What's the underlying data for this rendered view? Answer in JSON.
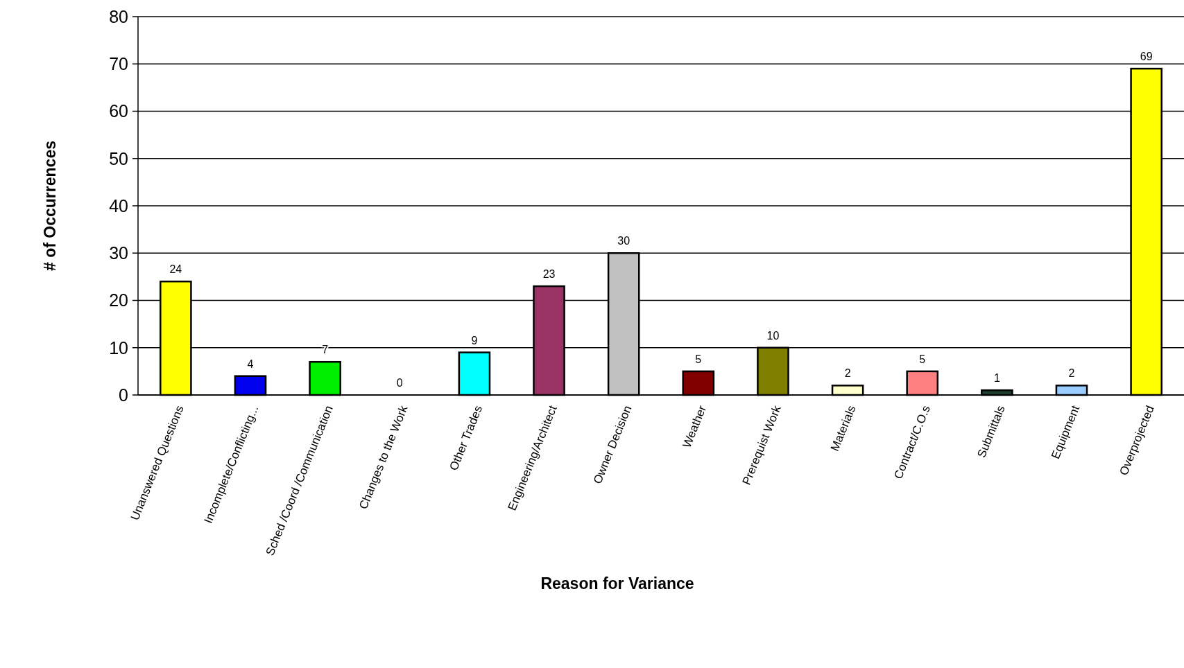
{
  "chart_data": {
    "type": "bar",
    "xlabel": "Reason for Variance",
    "ylabel": "# of Occurrences",
    "categories": [
      "Unanswered Questions",
      "Incomplete/Conflicting...",
      "Sched /Coord /Communication",
      "Changes to the Work",
      "Other Trades",
      "Engineering/Architect",
      "Owner Decision",
      "Weather",
      "Prerequist Work",
      "Materials",
      "Contract/C.O.s",
      "Submittals",
      "Equipment",
      "Overprojected"
    ],
    "values": [
      24,
      4,
      7,
      0,
      9,
      23,
      30,
      5,
      10,
      2,
      5,
      1,
      2,
      69
    ],
    "colors": [
      "#ffff00",
      "#0000ee",
      "#00ee00",
      null,
      "#00ffff",
      "#993366",
      "#c0c0c0",
      "#800000",
      "#808000",
      "#ffffcc",
      "#ff8080",
      "#1f3f2f",
      "#99ccff",
      "#ffff00"
    ],
    "ylim": [
      0,
      80
    ],
    "yticks": [
      0,
      10,
      20,
      30,
      40,
      50,
      60,
      70,
      80
    ],
    "grid": "y",
    "data_labels": true
  }
}
